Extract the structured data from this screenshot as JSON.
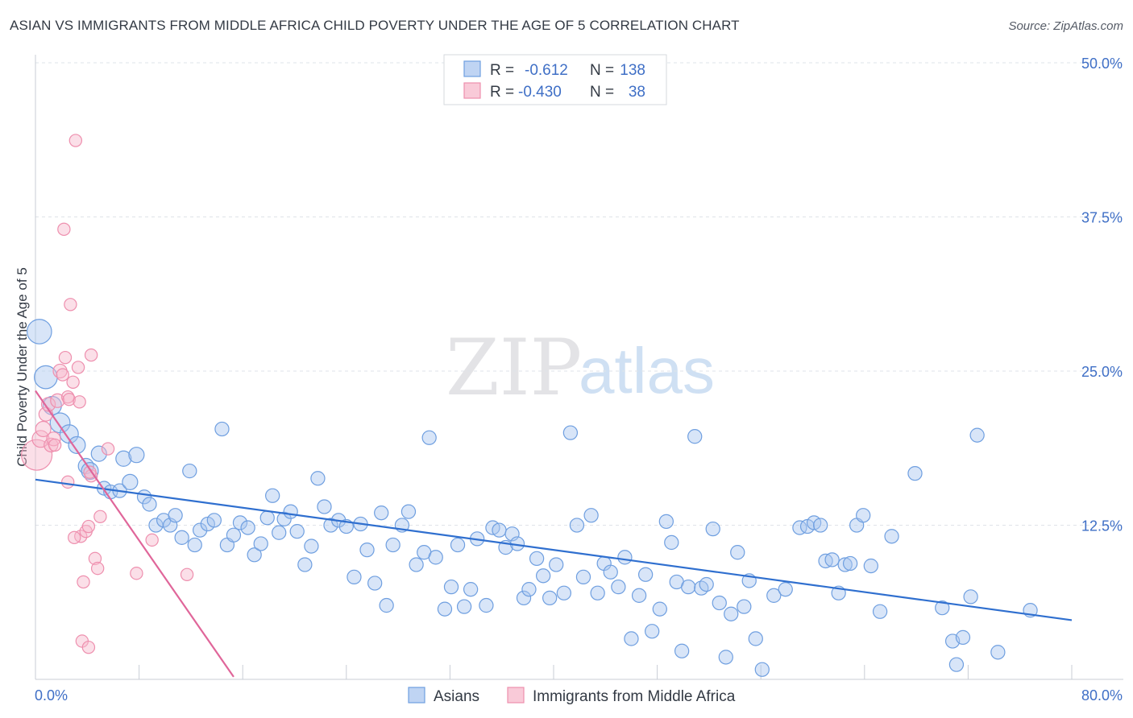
{
  "title": "ASIAN VS IMMIGRANTS FROM MIDDLE AFRICA CHILD POVERTY UNDER THE AGE OF 5 CORRELATION CHART",
  "source": "Source: ZipAtlas.com",
  "watermark": {
    "zip": "ZIP",
    "atlas": "atlas"
  },
  "colors": {
    "asians_fill": "#a9c6ef",
    "asians_stroke": "#6f9fe0",
    "asians_line": "#2f6fcf",
    "africa_fill": "#f7b8cb",
    "africa_stroke": "#ee8fae",
    "africa_line": "#e0669a",
    "tick_text": "#3f6fc6",
    "grid": "#dfe3e8"
  },
  "legend": {
    "rows": [
      {
        "r_label": "R =",
        "r_value": "-0.612",
        "n_label": "N =",
        "n_value": "138"
      },
      {
        "r_label": "R =",
        "r_value": "-0.430",
        "n_label": "N =",
        "n_value": "38"
      }
    ]
  },
  "chart_data": {
    "type": "scatter",
    "xlabel": "",
    "ylabel": "Child Poverty Under the Age of 5",
    "xlim": [
      0,
      80
    ],
    "ylim": [
      0,
      50
    ],
    "x_tick_labels": [
      {
        "value": 0,
        "label": "0.0%"
      },
      {
        "value": 80,
        "label": "80.0%"
      }
    ],
    "y_tick_labels": [
      {
        "value": 12.5,
        "label": "12.5%"
      },
      {
        "value": 25,
        "label": "25.0%"
      },
      {
        "value": 37.5,
        "label": "37.5%"
      },
      {
        "value": 50,
        "label": "50.0%"
      }
    ],
    "x_minor_ticks": [
      8,
      16,
      24,
      32,
      40,
      48,
      56,
      64,
      72,
      80
    ],
    "grid": true,
    "legend_position": "top-center",
    "series": [
      {
        "name": "Asians",
        "key": "asians",
        "trend": {
          "x": [
            0,
            80
          ],
          "y": [
            16.2,
            4.8
          ]
        },
        "points": [
          [
            0.3,
            28.2,
            1.6
          ],
          [
            0.8,
            24.5,
            1.5
          ],
          [
            1.3,
            22.2,
            1.2
          ],
          [
            1.9,
            20.8,
            1.3
          ],
          [
            2.6,
            19.9,
            1.2
          ],
          [
            3.2,
            19.0,
            1.1
          ],
          [
            3.9,
            17.3,
            1.0
          ],
          [
            4.2,
            16.9,
            1.1
          ],
          [
            4.9,
            18.3,
            1.0
          ],
          [
            5.3,
            15.5,
            0.9
          ],
          [
            5.8,
            15.2,
            0.9
          ],
          [
            6.5,
            15.3,
            0.9
          ],
          [
            6.8,
            17.9,
            1.0
          ],
          [
            7.3,
            16.0,
            1.0
          ],
          [
            7.8,
            18.2,
            1.0
          ],
          [
            8.4,
            14.8,
            0.9
          ],
          [
            8.8,
            14.2,
            0.9
          ],
          [
            9.3,
            12.5,
            0.9
          ],
          [
            9.9,
            12.9,
            0.9
          ],
          [
            10.4,
            12.5,
            0.9
          ],
          [
            10.8,
            13.3,
            0.9
          ],
          [
            11.3,
            11.5,
            0.9
          ],
          [
            11.9,
            16.9,
            0.9
          ],
          [
            12.3,
            10.9,
            0.9
          ],
          [
            12.7,
            12.1,
            0.9
          ],
          [
            13.3,
            12.6,
            0.9
          ],
          [
            13.8,
            12.9,
            0.9
          ],
          [
            14.4,
            20.3,
            0.9
          ],
          [
            14.8,
            10.9,
            0.9
          ],
          [
            15.3,
            11.7,
            0.9
          ],
          [
            15.8,
            12.7,
            0.9
          ],
          [
            16.4,
            12.3,
            0.9
          ],
          [
            16.9,
            10.1,
            0.9
          ],
          [
            17.4,
            11.0,
            0.9
          ],
          [
            17.9,
            13.1,
            0.9
          ],
          [
            18.3,
            14.9,
            0.9
          ],
          [
            18.8,
            11.9,
            0.9
          ],
          [
            19.2,
            13.0,
            0.9
          ],
          [
            19.7,
            13.6,
            0.9
          ],
          [
            20.2,
            12.0,
            0.9
          ],
          [
            20.8,
            9.3,
            0.9
          ],
          [
            21.3,
            10.8,
            0.9
          ],
          [
            21.8,
            16.3,
            0.9
          ],
          [
            22.3,
            14.0,
            0.9
          ],
          [
            22.8,
            12.5,
            0.9
          ],
          [
            23.4,
            12.9,
            0.9
          ],
          [
            24.0,
            12.4,
            0.9
          ],
          [
            24.6,
            8.3,
            0.9
          ],
          [
            25.1,
            12.6,
            0.9
          ],
          [
            25.6,
            10.5,
            0.9
          ],
          [
            26.2,
            7.8,
            0.9
          ],
          [
            26.7,
            13.5,
            0.9
          ],
          [
            27.1,
            6.0,
            0.9
          ],
          [
            27.6,
            10.9,
            0.9
          ],
          [
            28.3,
            12.5,
            0.9
          ],
          [
            28.8,
            13.6,
            0.9
          ],
          [
            29.4,
            9.3,
            0.9
          ],
          [
            30.0,
            10.3,
            0.9
          ],
          [
            30.4,
            19.6,
            0.9
          ],
          [
            30.9,
            9.9,
            0.9
          ],
          [
            31.6,
            5.7,
            0.9
          ],
          [
            32.1,
            7.5,
            0.9
          ],
          [
            32.6,
            10.9,
            0.9
          ],
          [
            33.1,
            5.9,
            0.9
          ],
          [
            33.6,
            7.3,
            0.9
          ],
          [
            34.1,
            11.4,
            0.9
          ],
          [
            34.8,
            6.0,
            0.9
          ],
          [
            35.3,
            12.3,
            0.9
          ],
          [
            35.8,
            12.1,
            0.9
          ],
          [
            36.3,
            10.7,
            0.9
          ],
          [
            36.8,
            11.8,
            0.9
          ],
          [
            37.2,
            11.0,
            0.9
          ],
          [
            37.7,
            6.6,
            0.9
          ],
          [
            38.1,
            7.3,
            0.9
          ],
          [
            38.7,
            9.8,
            0.9
          ],
          [
            39.2,
            8.4,
            0.9
          ],
          [
            39.7,
            6.6,
            0.9
          ],
          [
            40.2,
            9.3,
            0.9
          ],
          [
            40.8,
            7.0,
            0.9
          ],
          [
            41.3,
            20.0,
            0.9
          ],
          [
            41.8,
            12.5,
            0.9
          ],
          [
            42.3,
            8.3,
            0.9
          ],
          [
            42.9,
            13.3,
            0.9
          ],
          [
            43.4,
            7.0,
            0.9
          ],
          [
            43.9,
            9.4,
            0.9
          ],
          [
            44.4,
            8.7,
            0.9
          ],
          [
            45.0,
            7.5,
            0.9
          ],
          [
            45.5,
            9.9,
            0.9
          ],
          [
            46.0,
            3.3,
            0.9
          ],
          [
            46.6,
            6.8,
            0.9
          ],
          [
            47.1,
            8.5,
            0.9
          ],
          [
            47.6,
            3.9,
            0.9
          ],
          [
            48.2,
            5.7,
            0.9
          ],
          [
            48.7,
            12.8,
            0.9
          ],
          [
            49.1,
            11.1,
            0.9
          ],
          [
            49.5,
            7.9,
            0.9
          ],
          [
            49.9,
            2.3,
            0.9
          ],
          [
            50.4,
            7.5,
            0.9
          ],
          [
            50.9,
            19.7,
            0.9
          ],
          [
            51.4,
            7.4,
            0.9
          ],
          [
            51.8,
            7.7,
            0.9
          ],
          [
            52.3,
            12.2,
            0.9
          ],
          [
            52.8,
            6.2,
            0.9
          ],
          [
            53.3,
            1.8,
            0.9
          ],
          [
            53.7,
            5.3,
            0.9
          ],
          [
            54.2,
            10.3,
            0.9
          ],
          [
            54.7,
            5.9,
            0.9
          ],
          [
            55.1,
            8.0,
            0.9
          ],
          [
            55.6,
            3.3,
            0.9
          ],
          [
            56.1,
            0.8,
            0.9
          ],
          [
            57.0,
            6.8,
            0.9
          ],
          [
            57.9,
            7.3,
            0.9
          ],
          [
            59.0,
            12.3,
            0.9
          ],
          [
            59.6,
            12.4,
            0.9
          ],
          [
            60.1,
            12.7,
            0.9
          ],
          [
            60.6,
            12.5,
            0.9
          ],
          [
            61.0,
            9.6,
            0.9
          ],
          [
            61.5,
            9.7,
            0.9
          ],
          [
            62.0,
            7.0,
            0.9
          ],
          [
            62.5,
            9.3,
            0.9
          ],
          [
            62.9,
            9.4,
            0.9
          ],
          [
            63.4,
            12.5,
            0.9
          ],
          [
            63.9,
            13.3,
            0.9
          ],
          [
            64.5,
            9.2,
            0.9
          ],
          [
            65.2,
            5.5,
            0.9
          ],
          [
            66.1,
            11.6,
            0.9
          ],
          [
            67.9,
            16.7,
            0.9
          ],
          [
            70.0,
            5.8,
            0.9
          ],
          [
            70.8,
            3.1,
            0.9
          ],
          [
            71.1,
            1.2,
            0.9
          ],
          [
            71.6,
            3.4,
            0.9
          ],
          [
            72.2,
            6.7,
            0.9
          ],
          [
            72.7,
            19.8,
            0.9
          ],
          [
            74.3,
            2.2,
            0.9
          ],
          [
            76.8,
            5.6,
            0.9
          ]
        ]
      },
      {
        "name": "Immigrants from Middle Africa",
        "key": "africa",
        "trend": {
          "x": [
            0,
            15.3
          ],
          "y": [
            23.4,
            0.2
          ]
        },
        "points": [
          [
            0.1,
            18.2,
            2.0
          ],
          [
            0.4,
            19.5,
            1.1
          ],
          [
            0.6,
            20.3,
            1.0
          ],
          [
            0.8,
            21.5,
            0.9
          ],
          [
            1.0,
            22.3,
            0.9
          ],
          [
            1.2,
            19.0,
            0.9
          ],
          [
            1.4,
            19.5,
            0.9
          ],
          [
            1.7,
            22.6,
            0.9
          ],
          [
            1.9,
            25.0,
            0.9
          ],
          [
            2.1,
            24.7,
            0.8
          ],
          [
            2.3,
            26.1,
            0.8
          ],
          [
            2.5,
            22.9,
            0.8
          ],
          [
            2.7,
            30.4,
            0.8
          ],
          [
            2.9,
            24.1,
            0.8
          ],
          [
            3.1,
            43.7,
            0.8
          ],
          [
            3.3,
            25.3,
            0.8
          ],
          [
            3.5,
            11.6,
            0.8
          ],
          [
            3.7,
            7.9,
            0.8
          ],
          [
            3.9,
            12.0,
            0.8
          ],
          [
            4.1,
            12.4,
            0.8
          ],
          [
            4.3,
            26.3,
            0.8
          ],
          [
            4.6,
            9.8,
            0.8
          ],
          [
            4.8,
            9.0,
            0.8
          ],
          [
            5.0,
            13.2,
            0.8
          ],
          [
            2.2,
            36.5,
            0.8
          ],
          [
            3.6,
            3.1,
            0.8
          ],
          [
            4.1,
            2.6,
            0.8
          ],
          [
            2.5,
            16.0,
            0.8
          ],
          [
            3.0,
            11.5,
            0.8
          ],
          [
            1.5,
            19.0,
            0.8
          ],
          [
            4.3,
            16.5,
            0.8
          ],
          [
            5.6,
            18.7,
            0.8
          ],
          [
            7.8,
            8.6,
            0.8
          ],
          [
            9.0,
            11.3,
            0.8
          ],
          [
            11.7,
            8.5,
            0.8
          ],
          [
            4.2,
            16.8,
            0.8
          ],
          [
            2.6,
            22.7,
            0.8
          ],
          [
            3.4,
            22.5,
            0.8
          ]
        ]
      }
    ]
  },
  "bottom_legend": [
    {
      "label": "Asians",
      "key": "asians"
    },
    {
      "label": "Immigrants from Middle Africa",
      "key": "africa"
    }
  ]
}
